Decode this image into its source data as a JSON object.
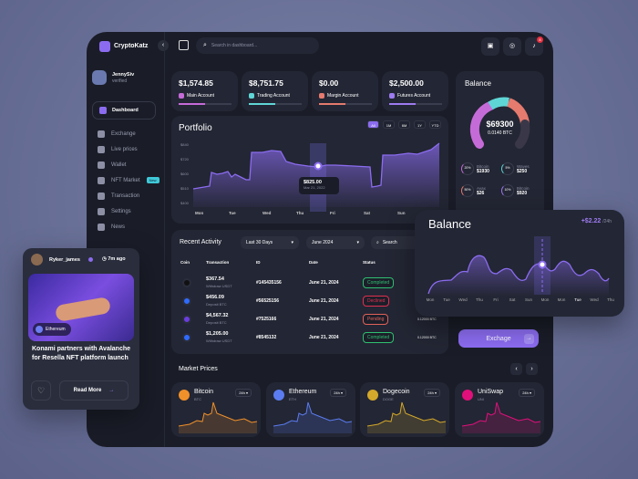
{
  "app": {
    "name": "CryptoKatz",
    "search_placeholder": "Search in dashboard...",
    "notification_count": "8"
  },
  "user": {
    "name": "JennySiv",
    "status": "verified"
  },
  "sidebar": {
    "items": [
      {
        "label": "Dashboard",
        "active": true
      },
      {
        "label": "Exchange"
      },
      {
        "label": "Live prices"
      },
      {
        "label": "Wallet"
      },
      {
        "label": "NFT Market",
        "badge": "New"
      },
      {
        "label": "Transaction"
      },
      {
        "label": "Settings"
      },
      {
        "label": "News"
      }
    ]
  },
  "accounts": [
    {
      "amount": "$1,574.85",
      "label": "Main Account",
      "color": "#c56bd8"
    },
    {
      "amount": "$8,751.75",
      "label": "Trading Account",
      "color": "#5fd6d6"
    },
    {
      "amount": "$0.00",
      "label": "Margin Account",
      "color": "#e57a6e"
    },
    {
      "amount": "$2,500.00",
      "label": "Futures Account",
      "color": "#9d7bf0"
    }
  ],
  "portfolio": {
    "title": "Portfolio",
    "ranges": [
      "All",
      "1M",
      "6M",
      "1Y",
      "YTD"
    ],
    "active_range": "All",
    "y_ticks": [
      "$840",
      "$720",
      "$600",
      "$510",
      "$400"
    ],
    "x_ticks": [
      "Mon",
      "Tue",
      "Wed",
      "Thu",
      "Fri",
      "Sat",
      "Sun"
    ],
    "tooltip_value": "$825.00",
    "tooltip_date": "Mar 21, 2022"
  },
  "balance": {
    "title": "Balance",
    "total": "$69300",
    "btc": "0.0140 BTC",
    "assets": [
      {
        "pct": "20%",
        "name": "Bitcoin",
        "value": "$1930",
        "color": "#c56bd8"
      },
      {
        "pct": "5%",
        "name": "Waves",
        "value": "$250",
        "color": "#5fd6d6"
      },
      {
        "pct": "50%",
        "name": "Avax",
        "value": "$26",
        "color": "#e57a6e"
      },
      {
        "pct": "10%",
        "name": "Bitcoin",
        "value": "$920",
        "color": "#9d7bf0"
      }
    ]
  },
  "activity": {
    "title": "Recent Activity",
    "filter_period": "Last 30 Days",
    "filter_month": "June 2024",
    "search_placeholder": "Search",
    "columns": [
      "Coin",
      "Transaction",
      "ID",
      "Date",
      "Status"
    ],
    "rows": [
      {
        "amount": "$367.54",
        "type": "Withdraw USDT",
        "id": "#145435156",
        "date": "June 21, 2024",
        "status": "Completed",
        "coin_color": "#111"
      },
      {
        "amount": "$456.09",
        "type": "Deposit BTC",
        "id": "#56525156",
        "date": "June 21, 2024",
        "status": "Declined",
        "coin_color": "#2f6bff"
      },
      {
        "amount": "$4,567.32",
        "type": "Deposit BTC",
        "id": "#7525166",
        "date": "June 21, 2024",
        "status": "Pending",
        "coin_color": "#6a3de0",
        "extra": "0.12000 BTC"
      },
      {
        "amount": "$1,205.00",
        "type": "Withdraw USDT",
        "id": "#8545132",
        "date": "June 21, 2024",
        "status": "Completed",
        "coin_color": "#2f6bff",
        "extra": "0.12000 BTC"
      }
    ]
  },
  "balance_popup": {
    "title": "Balance",
    "change": "+$2.22",
    "period": "/24h",
    "x_ticks": [
      "Mon",
      "Tue",
      "Wed",
      "Thu",
      "Fri",
      "Sat",
      "Sun",
      "Mon",
      "Mon",
      "Tue",
      "Wed",
      "Thu"
    ]
  },
  "exchange_button": "Exchage",
  "market": {
    "title": "Market Prices",
    "coins": [
      {
        "name": "Bitcoin",
        "symbol": "BTC",
        "period": "24h",
        "color": "#f0902a"
      },
      {
        "name": "Ethereum",
        "symbol": "ETH",
        "period": "24h",
        "color": "#5b7cf0"
      },
      {
        "name": "Dogecoin",
        "symbol": "DOGE",
        "period": "24h",
        "color": "#d4a82a"
      },
      {
        "name": "UniSwap",
        "symbol": "UNI",
        "period": "24h",
        "color": "#e0107a"
      }
    ]
  },
  "news": {
    "author": "Ryker_james",
    "time": "7m ago",
    "tag": "Ethereum",
    "headline": "Konami partners with Avalanche for Resella NFT platform launch",
    "read_more": "Read More"
  },
  "status_colors": {
    "Completed": "#2fbf71",
    "Declined": "#e0304f",
    "Pending": "#e0625a"
  }
}
